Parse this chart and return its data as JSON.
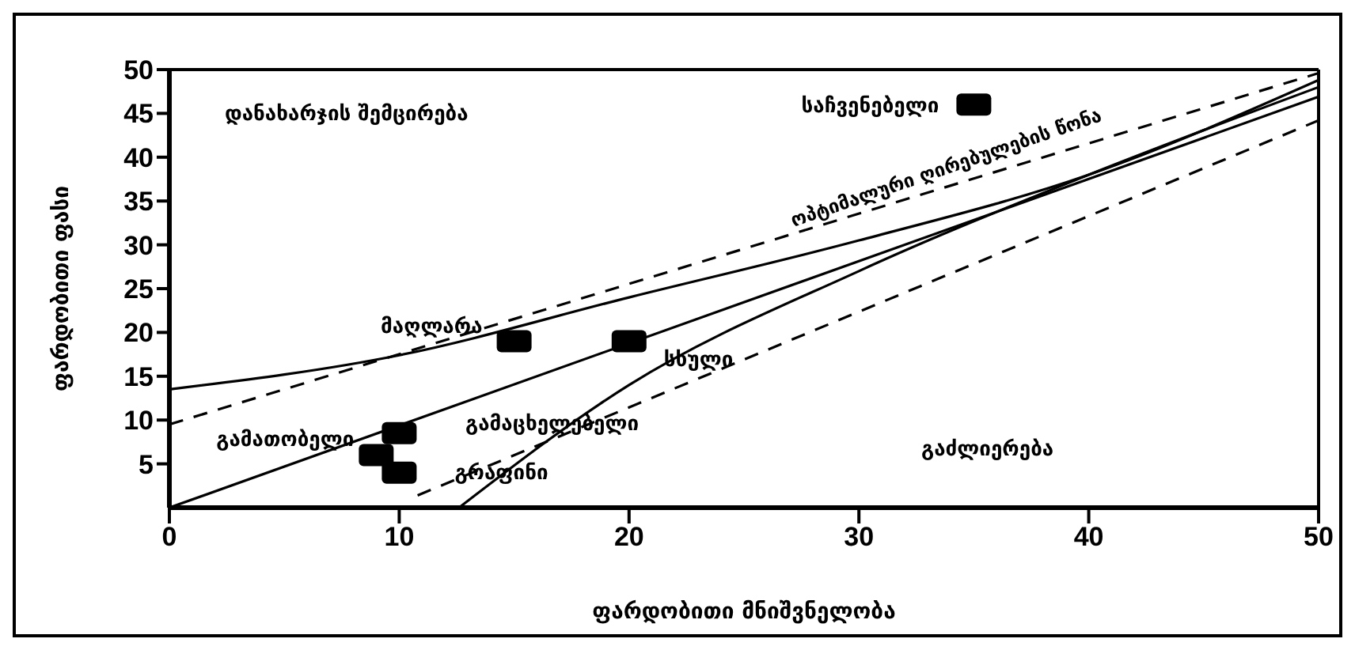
{
  "chart_data": {
    "type": "scatter",
    "xlabel": "ფარდობითი მნიშვნელობა",
    "ylabel": "ფარდობითი ფასი",
    "xlim": [
      0,
      50
    ],
    "xticks": [
      0,
      10,
      20,
      30,
      40,
      50
    ],
    "ylim": [
      0,
      50
    ],
    "yticks": [
      5,
      10,
      15,
      20,
      25,
      30,
      35,
      40,
      45,
      50
    ],
    "grid": false,
    "legend": false,
    "series": [
      {
        "marker": "square",
        "color": "#000000",
        "x": [
          35,
          15,
          20,
          9,
          10,
          10
        ],
        "values": [
          46,
          19,
          19,
          6,
          8.5,
          4
        ]
      },
      {
        "type": "line",
        "color": "#000000",
        "line_style": "dashed",
        "x": [
          0,
          50
        ],
        "values": [
          9.5,
          49.6
        ]
      },
      {
        "type": "line",
        "color": "#000000",
        "line_style": "solid",
        "x": [
          0,
          10,
          20,
          30,
          40,
          50
        ],
        "values": [
          13.5,
          17.4,
          24,
          30.5,
          38,
          48.8
        ]
      },
      {
        "type": "line",
        "color": "#000000",
        "line_style": "solid",
        "x": [
          0,
          50
        ],
        "values": [
          0,
          46.9
        ]
      },
      {
        "type": "line",
        "color": "#000000",
        "line_style": "solid",
        "x": [
          12.6,
          20,
          30,
          40,
          50
        ],
        "values": [
          0,
          14,
          27,
          38,
          48
        ]
      },
      {
        "type": "line",
        "color": "#000000",
        "line_style": "dashed",
        "x": [
          10.8,
          50
        ],
        "values": [
          1.4,
          44.2
        ]
      }
    ],
    "annotations": [
      "დანახარჯის შემცირება",
      {
        "text": "საჩვენებელი",
        "x": 35,
        "y": 46
      },
      {
        "text": "მაღლარა",
        "x": 15,
        "y": 19
      },
      {
        "text": "სხული",
        "x": 20,
        "y": 19
      },
      {
        "text": "გამათობელი",
        "x": 9,
        "y": 6
      },
      "გამაცხელებელი",
      {
        "text": "გრაფინი",
        "x": 10,
        "y": 4
      },
      "გაძლიერება",
      "ოპტიმალური ღირებულების წონა"
    ]
  }
}
